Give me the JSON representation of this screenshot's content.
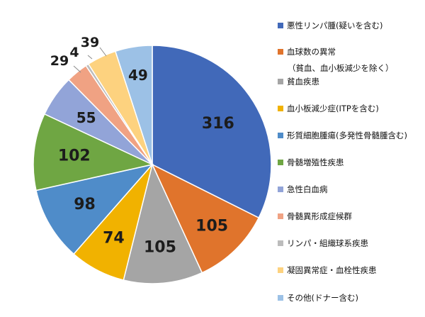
{
  "chart_data": {
    "type": "pie",
    "categories": [
      "悪性リンパ腫(疑いを含む)",
      "血球数の異常",
      "貧血疾患",
      "血小板減少症(ITPを含む)",
      "形質細胞腫瘍(多発性骨髄腫含む)",
      "骨髄増殖性疾患",
      "急性白血病",
      "骨髄異形成症候群",
      "リンパ・組織球系疾患",
      "凝固異常症・血栓性疾患",
      "その他(ドナー含む)"
    ],
    "legend_sublabels": {
      "1": "（貧血、血小板減少を除く）"
    },
    "values": [
      316,
      105,
      105,
      74,
      98,
      102,
      55,
      29,
      4,
      39,
      49
    ],
    "colors": [
      "#4169b9",
      "#e0742c",
      "#a5a5a5",
      "#f1b200",
      "#4f8cc9",
      "#6fa643",
      "#92a4d8",
      "#f0a283",
      "#bcbcbc",
      "#fdd27f",
      "#9cc1e6"
    ],
    "data_labels": [
      "316",
      "105",
      "105",
      "74",
      "98",
      "102",
      "55",
      "29",
      "4",
      "39",
      "49"
    ],
    "legend": "right"
  }
}
